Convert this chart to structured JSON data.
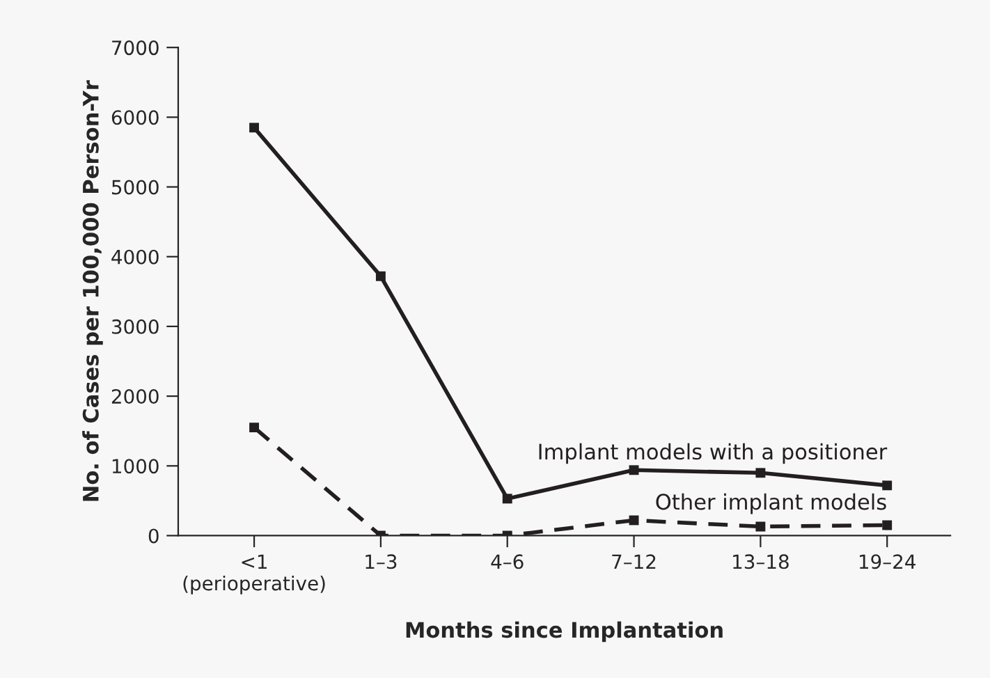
{
  "chart_data": {
    "type": "line",
    "xlabel": "Months since Implantation",
    "ylabel": "No. of Cases per 100,000 Person-Yr",
    "categories": [
      "<1\n(perioperative)",
      "1–3",
      "4–6",
      "7–12",
      "13–18",
      "19–24"
    ],
    "series": [
      {
        "name": "Implant models with a positioner",
        "color": "#231f20",
        "line_style": "solid",
        "values": [
          5850,
          3720,
          530,
          940,
          900,
          720
        ]
      },
      {
        "name": "Other implant models",
        "color": "#231f20",
        "line_style": "dashed",
        "values": [
          1550,
          0,
          0,
          220,
          130,
          150
        ]
      }
    ],
    "ylim": [
      0,
      7000
    ],
    "yticks": [
      0,
      1000,
      2000,
      3000,
      4000,
      5000,
      6000,
      7000
    ],
    "marker": "square",
    "grid": false,
    "legend": false
  }
}
